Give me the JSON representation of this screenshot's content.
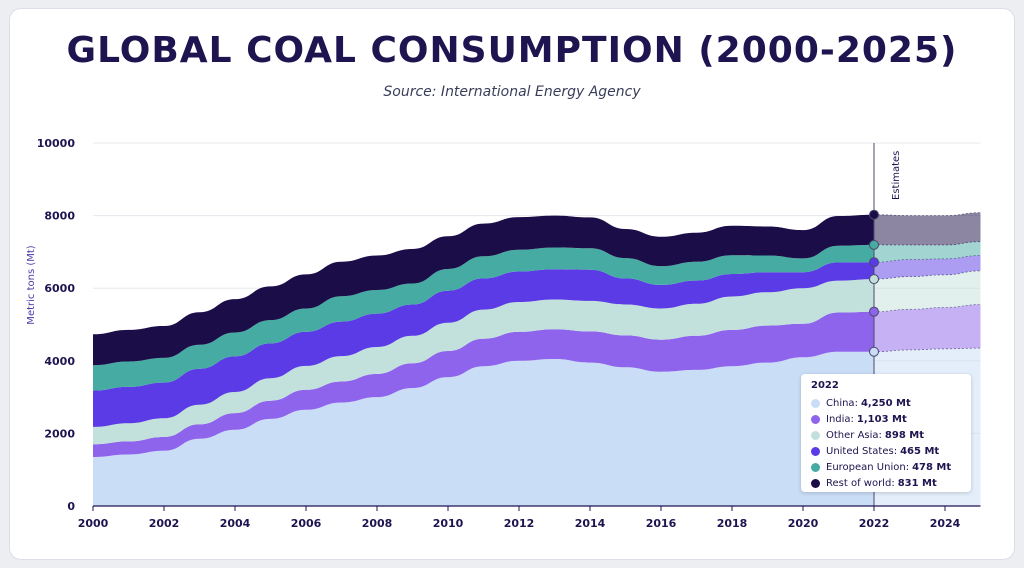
{
  "title": "GLOBAL COAL CONSUMPTION (2000-2025)",
  "subtitle": "Source: International Energy Agency",
  "chart_data": {
    "type": "area",
    "stacked": true,
    "x": [
      2000,
      2001,
      2002,
      2003,
      2004,
      2005,
      2006,
      2007,
      2008,
      2009,
      2010,
      2011,
      2012,
      2013,
      2014,
      2015,
      2016,
      2017,
      2018,
      2019,
      2020,
      2021,
      2022,
      2023,
      2024,
      2025
    ],
    "estimates_from": 2022,
    "series": [
      {
        "name": "China",
        "color": "#c9ddf7",
        "values": [
          1350,
          1420,
          1520,
          1850,
          2100,
          2400,
          2650,
          2850,
          3000,
          3250,
          3550,
          3850,
          4000,
          4050,
          3950,
          3820,
          3700,
          3750,
          3850,
          3950,
          4100,
          4250,
          4250,
          4300,
          4330,
          4350
        ]
      },
      {
        "name": "India",
        "color": "#8f64ec",
        "values": [
          350,
          360,
          380,
          400,
          460,
          500,
          550,
          580,
          640,
          680,
          720,
          760,
          800,
          820,
          860,
          880,
          880,
          940,
          1000,
          1020,
          920,
          1080,
          1103,
          1120,
          1140,
          1200
        ]
      },
      {
        "name": "Other Asia",
        "color": "#c3e1dc",
        "values": [
          480,
          500,
          520,
          540,
          580,
          620,
          660,
          700,
          740,
          760,
          780,
          800,
          820,
          820,
          840,
          850,
          860,
          880,
          920,
          920,
          980,
          880,
          898,
          900,
          900,
          930
        ]
      },
      {
        "name": "United States",
        "color": "#5a3be5",
        "values": [
          1000,
          1000,
          980,
          990,
          980,
          960,
          940,
          950,
          920,
          860,
          880,
          860,
          840,
          830,
          860,
          720,
          650,
          640,
          620,
          550,
          440,
          500,
          465,
          470,
          440,
          420
        ]
      },
      {
        "name": "European Union",
        "color": "#46aba3",
        "values": [
          700,
          700,
          680,
          660,
          660,
          640,
          640,
          700,
          650,
          580,
          600,
          610,
          600,
          600,
          590,
          560,
          520,
          520,
          520,
          460,
          380,
          460,
          478,
          400,
          380,
          380
        ]
      },
      {
        "name": "Rest of world",
        "color": "#1b0d48",
        "values": [
          850,
          870,
          880,
          900,
          920,
          930,
          940,
          950,
          950,
          950,
          900,
          900,
          900,
          880,
          850,
          800,
          810,
          800,
          810,
          800,
          780,
          820,
          831,
          810,
          810,
          800
        ]
      }
    ],
    "xlim": [
      2000,
      2025
    ],
    "ylim": [
      0,
      10000
    ],
    "yticks": [
      0,
      2000,
      4000,
      6000,
      8000,
      10000
    ],
    "xticks": [
      2000,
      2002,
      2004,
      2006,
      2008,
      2010,
      2012,
      2014,
      2016,
      2018,
      2020,
      2022,
      2024
    ],
    "ylabel": "Metric tons (Mt)",
    "annotation": "Estimates",
    "legend": {
      "title": "2022",
      "position": "bottom-right",
      "items": [
        {
          "label": "China:",
          "value": "4,250 Mt",
          "color": "#c9ddf7"
        },
        {
          "label": "India:",
          "value": "1,103 Mt",
          "color": "#8f64ec"
        },
        {
          "label": "Other Asia:",
          "value": "898 Mt",
          "color": "#c3e1dc"
        },
        {
          "label": "United States:",
          "value": "465 Mt",
          "color": "#5a3be5"
        },
        {
          "label": "European Union:",
          "value": "478 Mt",
          "color": "#46aba3"
        },
        {
          "label": "Rest of world:",
          "value": "831 Mt",
          "color": "#1b0d48"
        }
      ]
    }
  }
}
